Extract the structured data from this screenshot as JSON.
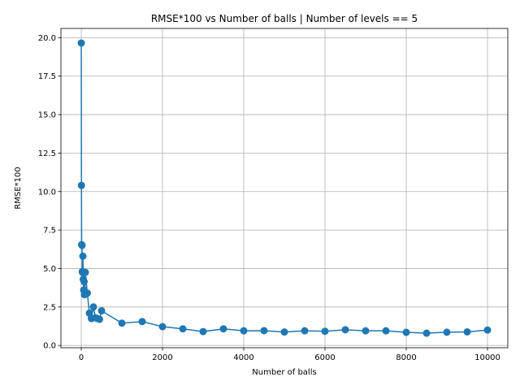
{
  "chart_data": {
    "type": "line",
    "title": "RMSE*100 vs Number of balls | Number of levels == 5",
    "xlabel": "Number of balls",
    "ylabel": "RMSE*100",
    "xlim": [
      -500,
      10500
    ],
    "ylim": [
      -0.15,
      20.6
    ],
    "xticks": [
      0,
      2000,
      4000,
      6000,
      8000,
      10000
    ],
    "xtick_labels": [
      "0",
      "2000",
      "4000",
      "6000",
      "8000",
      "10000"
    ],
    "yticks": [
      0.0,
      2.5,
      5.0,
      7.5,
      10.0,
      12.5,
      15.0,
      17.5,
      20.0
    ],
    "ytick_labels": [
      "0.0",
      "2.5",
      "5.0",
      "7.5",
      "10.0",
      "12.5",
      "15.0",
      "17.5",
      "20.0"
    ],
    "grid": true,
    "color": "#1f77b4",
    "marker": "circle",
    "x": [
      1,
      5,
      10,
      20,
      25,
      30,
      40,
      50,
      60,
      70,
      80,
      90,
      100,
      150,
      200,
      250,
      300,
      350,
      400,
      450,
      500,
      1000,
      1500,
      2000,
      2500,
      3000,
      3500,
      4000,
      4500,
      5000,
      5500,
      6000,
      6500,
      7000,
      7500,
      8000,
      8500,
      9000,
      9500,
      10000
    ],
    "y": [
      19.65,
      10.4,
      6.55,
      6.5,
      4.8,
      4.75,
      5.8,
      4.3,
      3.6,
      4.15,
      3.3,
      3.45,
      4.75,
      3.4,
      2.1,
      1.75,
      2.5,
      1.8,
      1.75,
      1.7,
      2.25,
      1.45,
      1.55,
      1.22,
      1.08,
      0.9,
      1.08,
      0.95,
      0.96,
      0.87,
      0.95,
      0.92,
      1.02,
      0.95,
      0.95,
      0.85,
      0.8,
      0.86,
      0.88,
      1.0
    ]
  }
}
